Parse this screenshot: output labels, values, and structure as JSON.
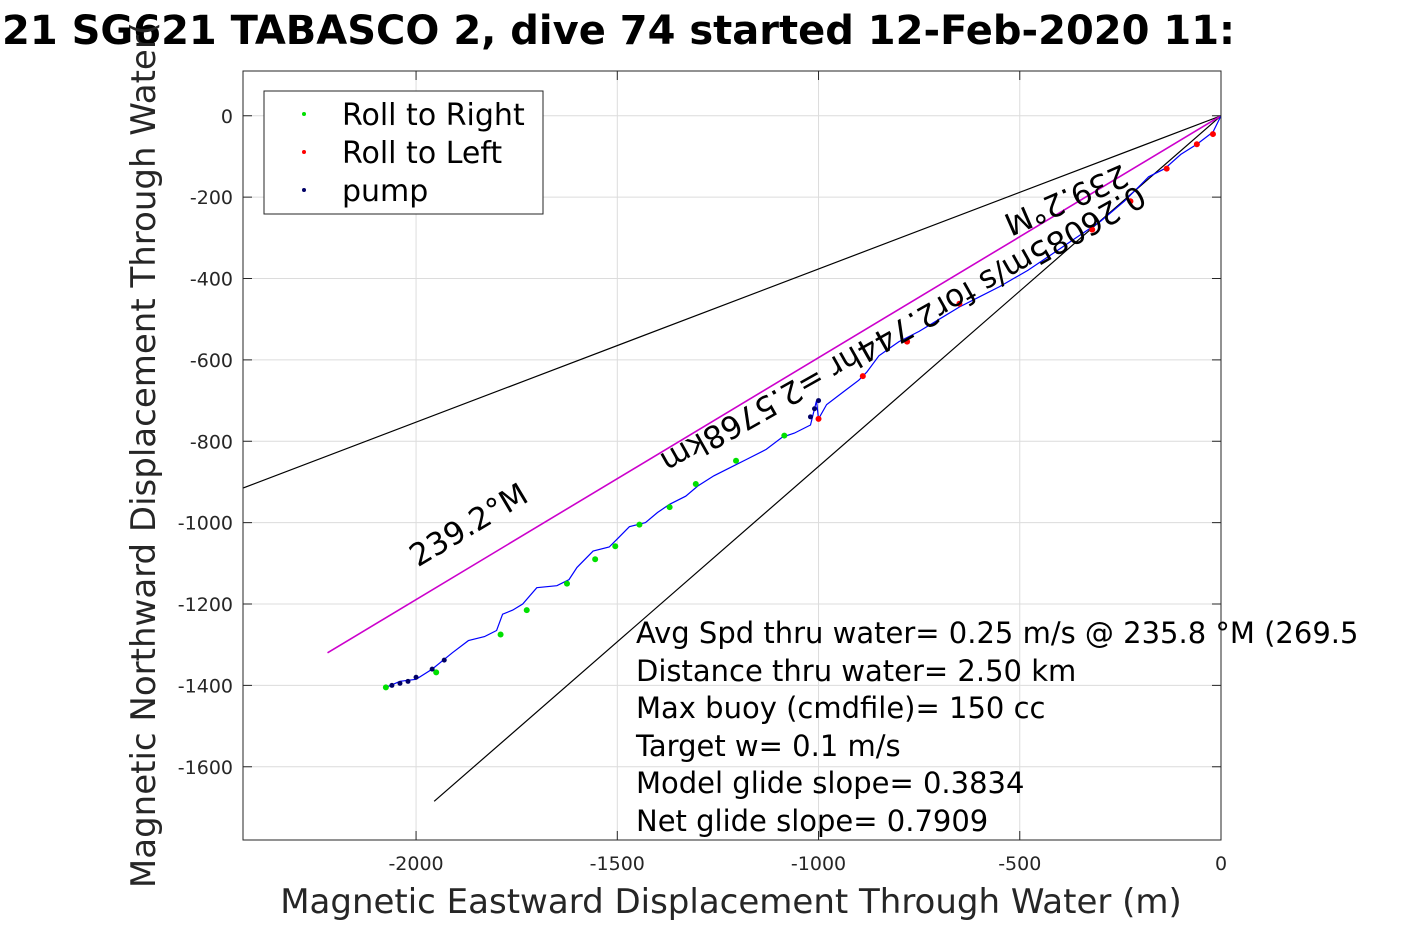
{
  "chart_data": {
    "type": "line",
    "title": "21 SG621 TABASCO 2, dive 74 started 12-Feb-2020 11:",
    "xlabel": "Magnetic Eastward Displacement Through Water (m)",
    "ylabel": "Magnetic Northward Displacement Through Water(",
    "xlim": [
      -2430,
      0
    ],
    "ylim": [
      -1780,
      110
    ],
    "xticks": [
      -2000,
      -1500,
      -1000,
      -500,
      0
    ],
    "yticks": [
      0,
      -200,
      -400,
      -600,
      -800,
      -1000,
      -1200,
      -1400,
      -1600
    ],
    "grid": true,
    "legend_position": "top-left",
    "legend": [
      {
        "label": "Roll to Right",
        "color": "#00e000"
      },
      {
        "label": "Roll to Left",
        "color": "#ff0000"
      },
      {
        "label": "pump",
        "color": "#000066"
      }
    ],
    "colors": {
      "track": "#0000ff",
      "heading_line": "#cc00cc",
      "reference_line": "#000000"
    },
    "reference_lines": [
      {
        "x": [
          0,
          -2430
        ],
        "y": [
          0,
          -915
        ]
      },
      {
        "x": [
          0,
          -1955
        ],
        "y": [
          0,
          -1685
        ]
      }
    ],
    "heading_line": {
      "x": [
        0,
        -2220
      ],
      "y": [
        0,
        -1320
      ]
    },
    "track": {
      "x": [
        0,
        -20,
        -60,
        -100,
        -140,
        -180,
        -240,
        -300,
        -360,
        -420,
        -480,
        -550,
        -600,
        -650,
        -700,
        -750,
        -800,
        -850,
        -880,
        -900,
        -940,
        -980,
        -1000,
        -1005,
        -1020,
        -1060,
        -1090,
        -1130,
        -1180,
        -1210,
        -1260,
        -1300,
        -1330,
        -1370,
        -1400,
        -1430,
        -1470,
        -1500,
        -1520,
        -1560,
        -1600,
        -1620,
        -1650,
        -1700,
        -1735,
        -1760,
        -1785,
        -1800,
        -1830,
        -1870,
        -1910,
        -1960,
        -2000,
        -2040,
        -2075
      ],
      "y": [
        0,
        -40,
        -70,
        -95,
        -130,
        -150,
        -210,
        -260,
        -300,
        -340,
        -380,
        -420,
        -445,
        -470,
        -500,
        -530,
        -555,
        -590,
        -630,
        -650,
        -680,
        -710,
        -745,
        -700,
        -760,
        -780,
        -790,
        -820,
        -845,
        -860,
        -885,
        -910,
        -935,
        -955,
        -975,
        -1000,
        -1010,
        -1040,
        -1060,
        -1070,
        -1110,
        -1140,
        -1155,
        -1160,
        -1200,
        -1215,
        -1225,
        -1265,
        -1280,
        -1290,
        -1320,
        -1360,
        -1385,
        -1390,
        -1405
      ]
    },
    "roll_right_points": {
      "x": [
        -1205,
        -1085,
        -1305,
        -1370,
        -1445,
        -1505,
        -1555,
        -1625,
        -1725,
        -1790,
        -1950,
        -2075
      ],
      "y": [
        -848,
        -786,
        -905,
        -962,
        -1005,
        -1058,
        -1090,
        -1150,
        -1215,
        -1275,
        -1368,
        -1405
      ]
    },
    "roll_left_points": {
      "x": [
        -20,
        -60,
        -135,
        -225,
        -320,
        -650,
        -780,
        -890,
        -1000
      ],
      "y": [
        -45,
        -70,
        -130,
        -210,
        -280,
        -462,
        -555,
        -640,
        -745
      ]
    },
    "pump_points": {
      "x": [
        -1000,
        -1010,
        -1020,
        -1930,
        -1960,
        -2000,
        -2020,
        -2040,
        -2060
      ],
      "y": [
        -700,
        -720,
        -740,
        -1338,
        -1360,
        -1380,
        -1390,
        -1395,
        -1400
      ]
    },
    "annotations": {
      "diag_upper": "239.2°M",
      "diag_middle": "0.26085m/s for2.744hr =2.5768km",
      "diag_lower": "239.2°M"
    },
    "stats": [
      "Avg Spd thru water=  0.25 m/s @ 235.8 °M (269.5",
      "Distance thru water=  2.50 km",
      "Max buoy (cmdfile)= 150 cc",
      "Target w= 0.1 m/s",
      "Model glide slope= 0.3834",
      "Net glide slope= 0.7909"
    ]
  }
}
